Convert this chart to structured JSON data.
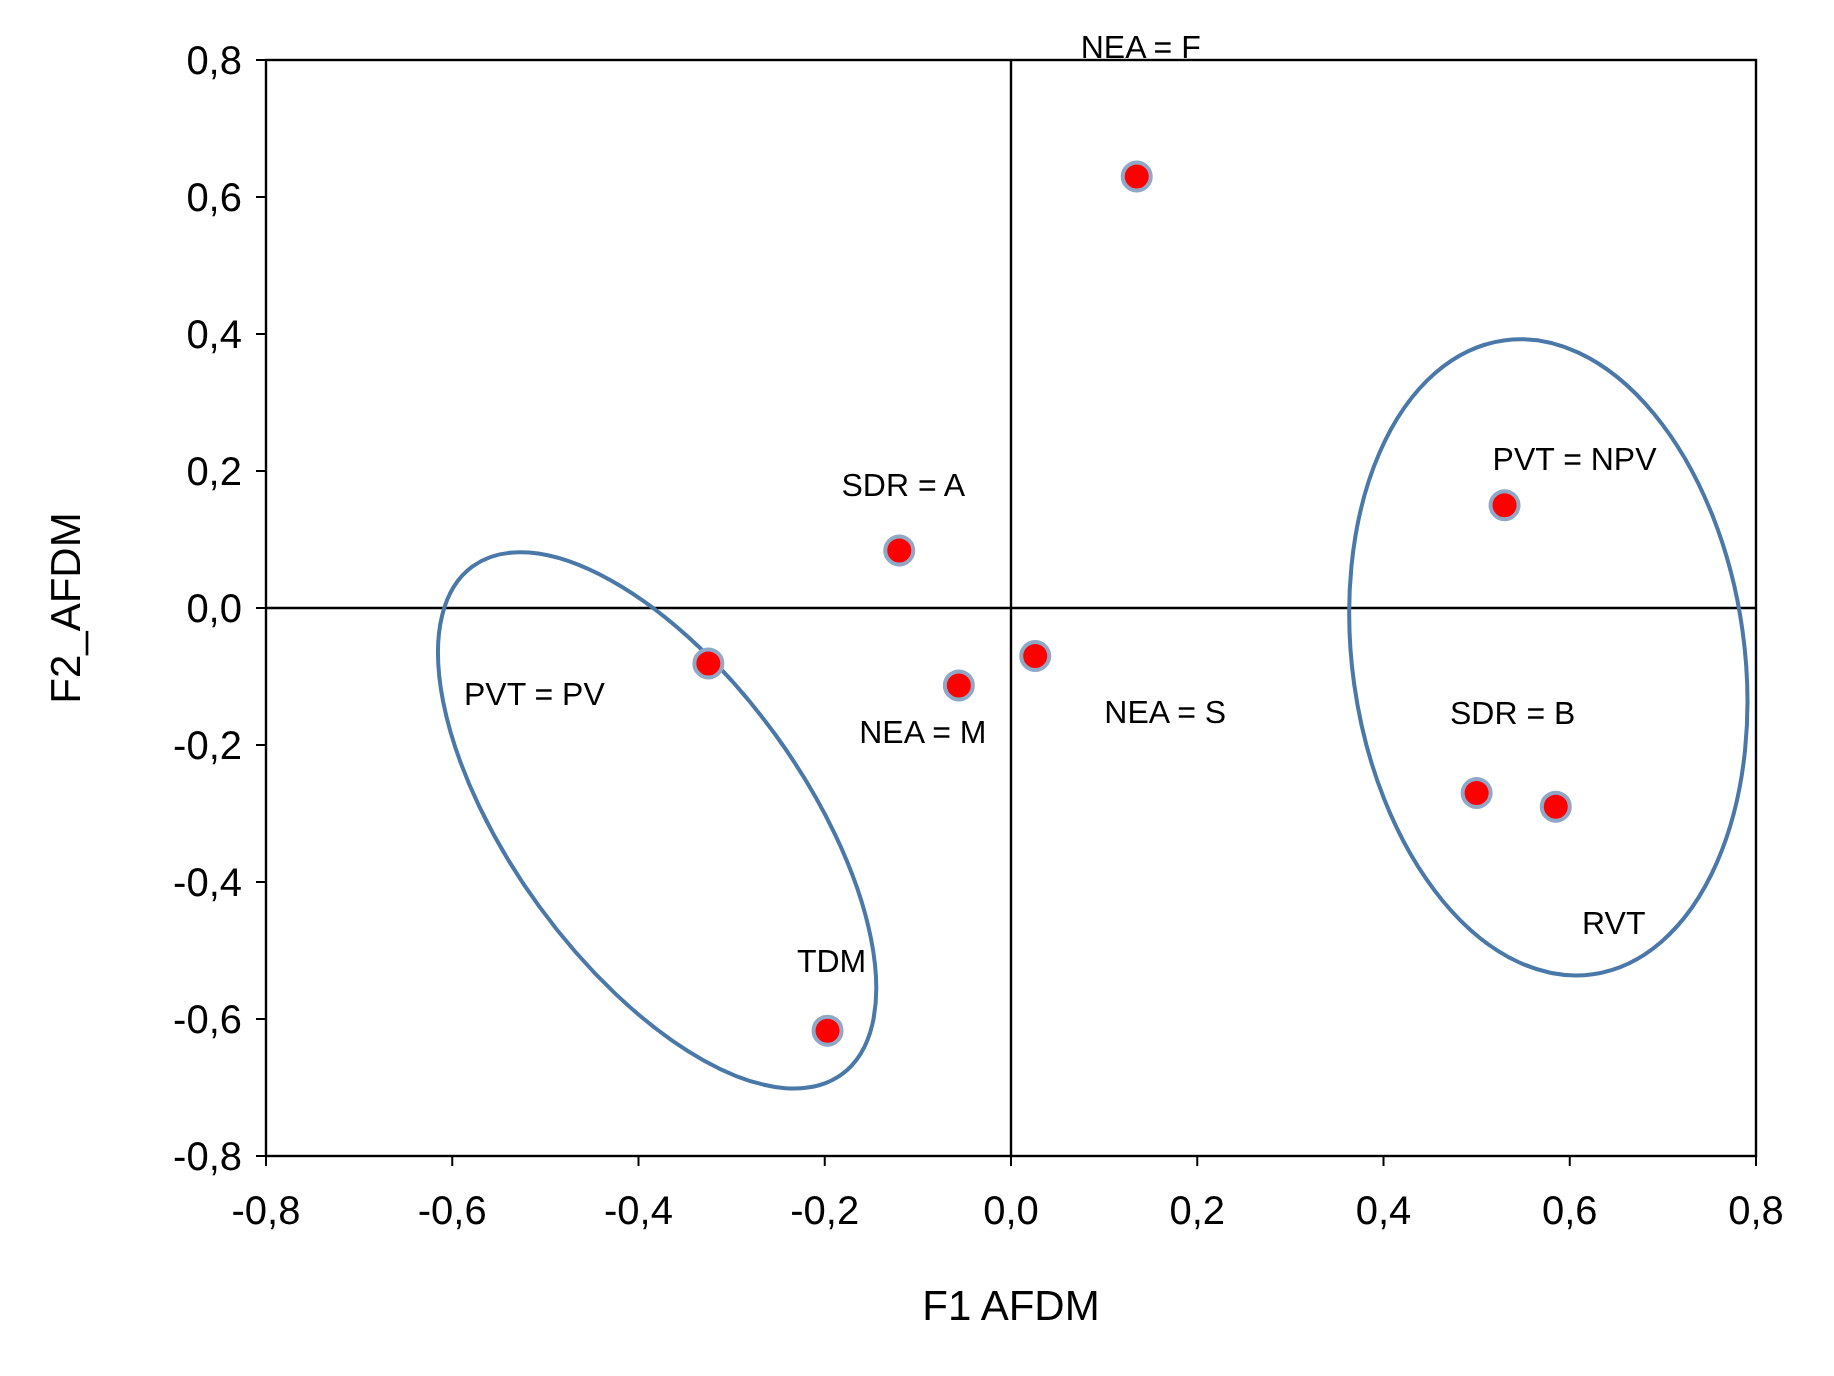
{
  "chart_data": {
    "type": "scatter",
    "xlabel": "F1  AFDM",
    "ylabel": "F2_AFDM",
    "xlim": [
      -0.8,
      0.8
    ],
    "ylim": [
      -0.8,
      0.8
    ],
    "xticks": [
      {
        "value": -0.8,
        "label": "-0,8"
      },
      {
        "value": -0.6,
        "label": "-0,6"
      },
      {
        "value": -0.4,
        "label": "-0,4"
      },
      {
        "value": -0.2,
        "label": "-0,2"
      },
      {
        "value": 0,
        "label": "0,0"
      },
      {
        "value": 0.2,
        "label": "0,2"
      },
      {
        "value": 0.4,
        "label": "0,4"
      },
      {
        "value": 0.6,
        "label": "0,6"
      },
      {
        "value": 0.8,
        "label": "0,8"
      }
    ],
    "yticks": [
      {
        "value": -0.8,
        "label": "-0,8"
      },
      {
        "value": -0.6,
        "label": "-0,6"
      },
      {
        "value": -0.4,
        "label": "-0,4"
      },
      {
        "value": -0.2,
        "label": "-0,2"
      },
      {
        "value": 0,
        "label": "0,0"
      },
      {
        "value": 0.2,
        "label": "0,2"
      },
      {
        "value": 0.4,
        "label": "0,4"
      },
      {
        "value": 0.6,
        "label": "0,6"
      },
      {
        "value": 0.8,
        "label": "0,8"
      }
    ],
    "series": [
      {
        "color": "#ff0000",
        "marker": "circle",
        "x": [
          0.135,
          -0.12,
          -0.325,
          -0.056,
          0.026,
          0.53,
          0.5,
          0.585,
          -0.197
        ],
        "values": [
          0.63,
          0.084,
          -0.081,
          -0.113,
          -0.07,
          0.15,
          -0.27,
          -0.29,
          -0.617
        ]
      }
    ],
    "annotations": [
      "NEA = F",
      "SDR = A",
      "PVT = PV",
      "NEA = M",
      "NEA = S",
      "PVT = NPV",
      "SDR = B",
      "RVT",
      "TDM"
    ]
  }
}
